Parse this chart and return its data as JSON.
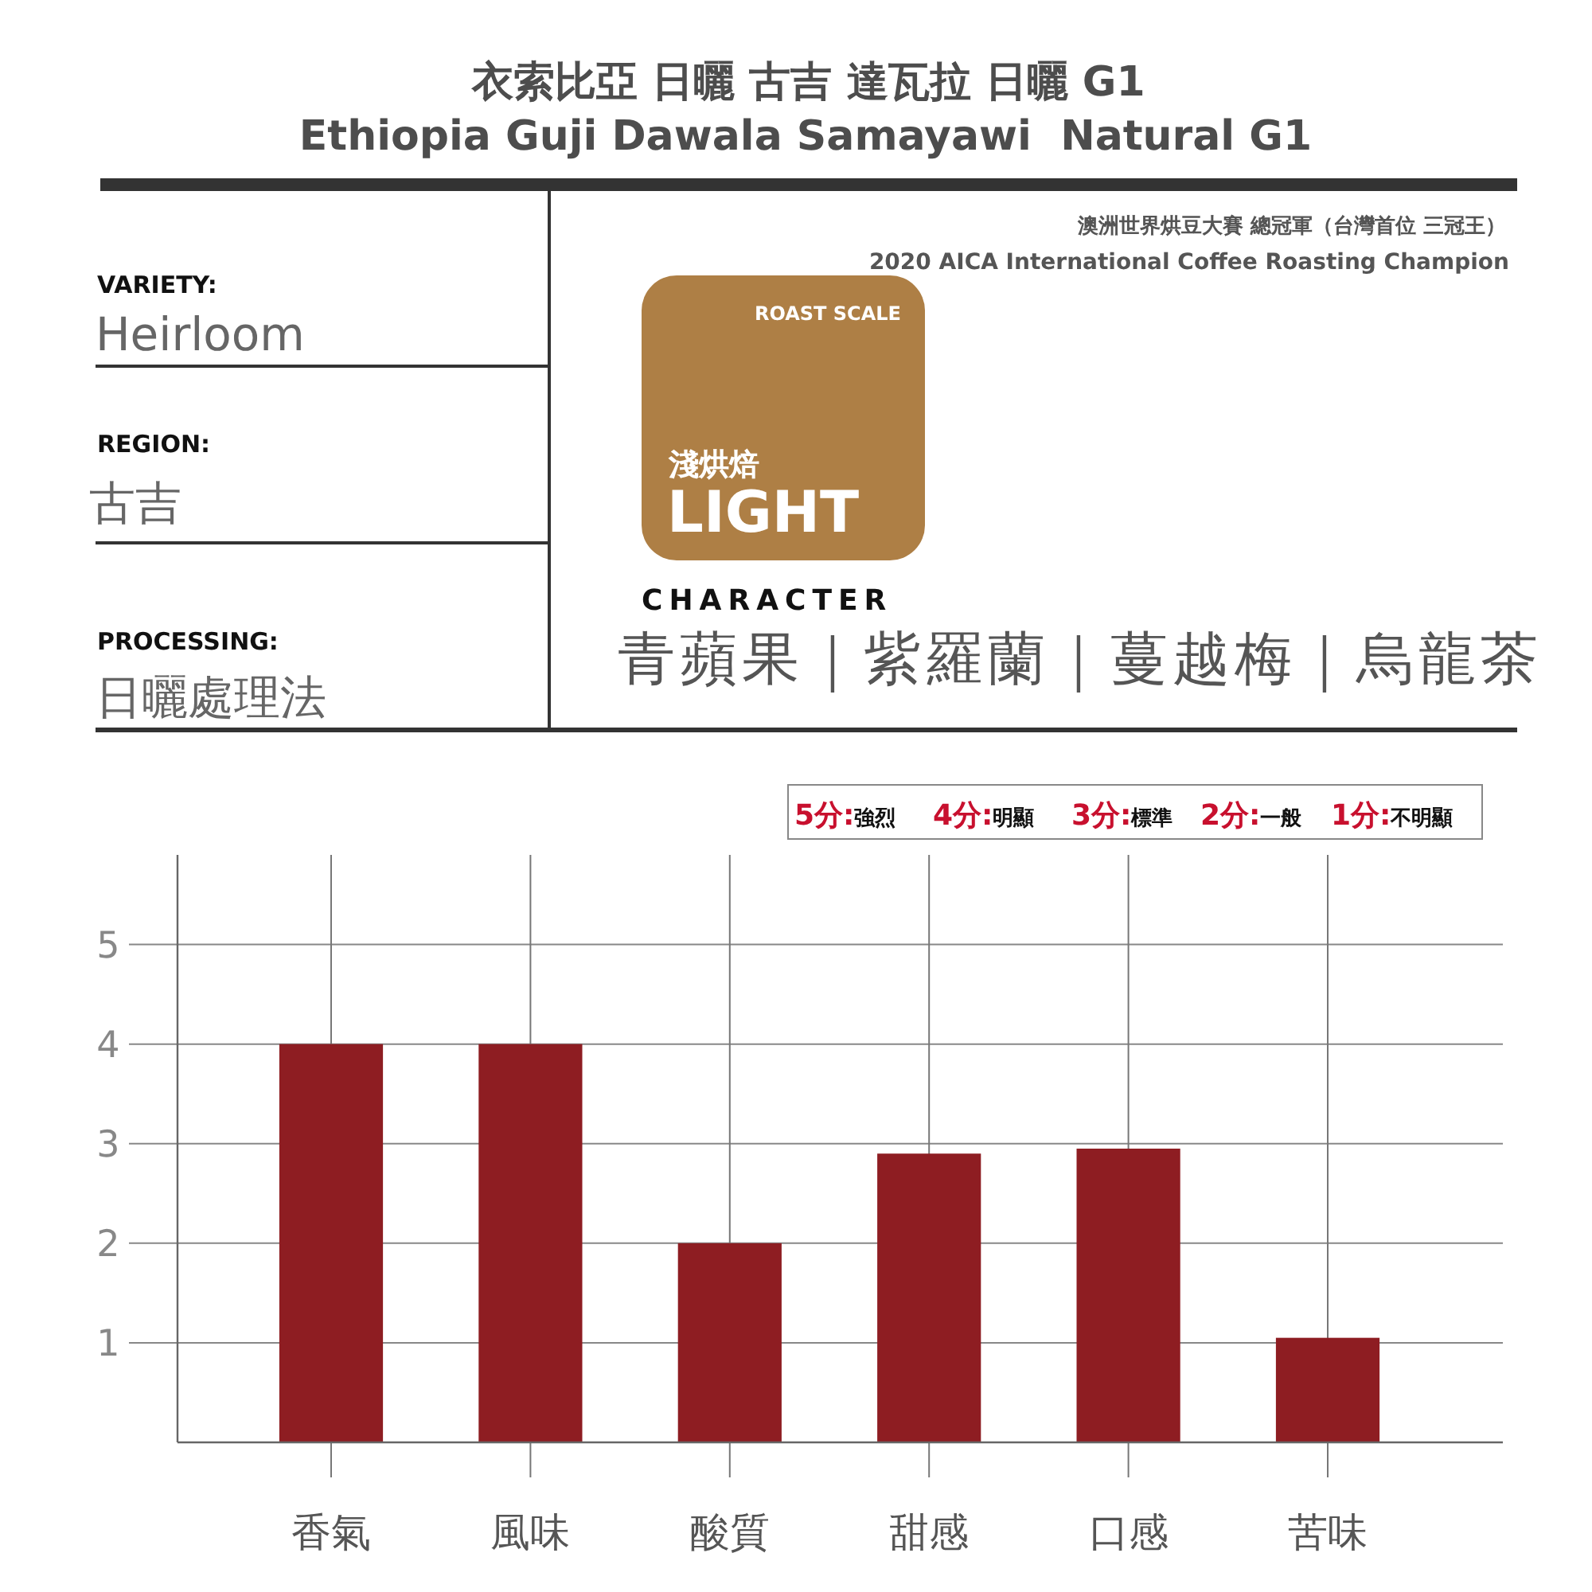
{
  "chart_data": {
    "type": "bar",
    "title": "衣索比亞 日曬 古吉 達瓦拉 日曬 G1",
    "subtitle": "Ethiopia Guji Dawala Samayawi  Natural G1",
    "categories": [
      "香氣",
      "風味",
      "酸質",
      "甜感",
      "口感",
      "苦味"
    ],
    "values": [
      4,
      4,
      2,
      2.9,
      2.95,
      1.05
    ],
    "color": "#8e1d22",
    "ylim": [
      0,
      5.9
    ],
    "yticks": [
      1,
      2,
      3,
      4,
      5
    ],
    "grid": true,
    "annotations": [
      "VARIETY:",
      "Heirloom",
      "REGION:",
      "古吉",
      "PROCESSING:",
      "日曬處理法",
      "澳洲世界烘豆大賽 總冠軍（台灣首位 三冠王）",
      "2020 AICA International Coffee Roasting Champion",
      "ROAST SCALE",
      "淺烘焙",
      "LIGHT",
      "CHARACTER",
      "青蘋果｜紫羅蘭｜蔓越梅｜烏龍茶",
      "5分:強烈",
      "4分:明顯",
      "3分:標準",
      "2分:一般",
      "1分:不明顯"
    ]
  }
}
